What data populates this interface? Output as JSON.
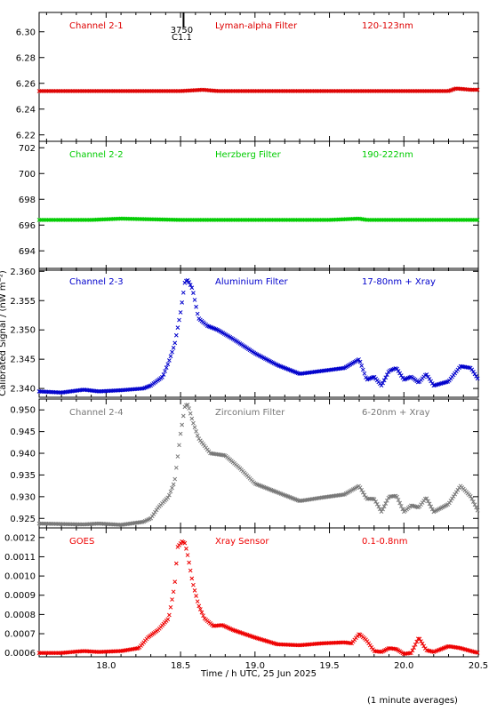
{
  "x_axis": {
    "label": "Time / h UTC, 25 Jun 2025",
    "range": [
      17.55,
      20.5
    ],
    "ticks": [
      18.0,
      18.5,
      19.0,
      19.5,
      20.0,
      20.5
    ],
    "tick_labels": [
      "18.0",
      "18.5",
      "19.0",
      "19.5",
      "20.0",
      "20.5"
    ]
  },
  "y_axis_label": "Calibrated Signal / (nW m⁻²)",
  "footnote": "(1 minute averages)",
  "marker": {
    "x": 18.52,
    "label_1": "3750",
    "label_2": "C1.1"
  },
  "chart_data": [
    {
      "type": "scatter",
      "panel": "channel-2-1",
      "channel": "Channel 2-1",
      "filter": "Lyman-alpha Filter",
      "band": "120-123nm",
      "color": "#dd0000",
      "ylim": [
        6.215,
        6.315
      ],
      "yticks": [
        6.22,
        6.24,
        6.26,
        6.28,
        6.3
      ],
      "ytick_labels": [
        "6.22",
        "6.24",
        "6.26",
        "6.28",
        "6.30"
      ],
      "series": [
        {
          "x": [
            17.55,
            18.0,
            18.5,
            18.65,
            18.75,
            19.0,
            19.5,
            20.0,
            20.3,
            20.35,
            20.45,
            20.5
          ],
          "y": [
            6.254,
            6.254,
            6.254,
            6.255,
            6.254,
            6.254,
            6.254,
            6.254,
            6.254,
            6.256,
            6.255,
            6.255
          ]
        }
      ]
    },
    {
      "type": "scatter",
      "panel": "channel-2-2",
      "channel": "Channel 2-2",
      "filter": "Herzberg Filter",
      "band": "190-222nm",
      "color": "#00cc00",
      "ylim": [
        692.5,
        702.5
      ],
      "yticks": [
        694,
        696,
        698,
        700,
        702
      ],
      "ytick_labels": [
        "694",
        "696",
        "698",
        "700",
        "702"
      ],
      "series": [
        {
          "x": [
            17.55,
            17.9,
            18.1,
            18.5,
            19.0,
            19.5,
            19.7,
            19.75,
            20.0,
            20.5
          ],
          "y": [
            696.4,
            696.4,
            696.5,
            696.4,
            696.4,
            696.4,
            696.5,
            696.4,
            696.4,
            696.4
          ]
        }
      ]
    },
    {
      "type": "scatter",
      "panel": "channel-2-3",
      "channel": "Channel 2-3",
      "filter": "Aluminium Filter",
      "band": "17-80nm + Xray",
      "color": "#0000cc",
      "ylim": [
        2.3385,
        2.3605
      ],
      "yticks": [
        2.34,
        2.345,
        2.35,
        2.355,
        2.36
      ],
      "ytick_labels": [
        "2.340",
        "2.345",
        "2.350",
        "2.355",
        "2.360"
      ],
      "series": [
        {
          "x": [
            17.55,
            17.7,
            17.85,
            17.95,
            18.1,
            18.25,
            18.3,
            18.38,
            18.42,
            18.46,
            18.5,
            18.53,
            18.55,
            18.58,
            18.62,
            18.68,
            18.75,
            18.85,
            19.0,
            19.15,
            19.3,
            19.45,
            19.6,
            19.7,
            19.75,
            19.8,
            19.85,
            19.9,
            19.95,
            20.0,
            20.05,
            20.1,
            20.15,
            20.2,
            20.3,
            20.38,
            20.45,
            20.5
          ],
          "y": [
            2.3395,
            2.3393,
            2.3398,
            2.3395,
            2.3397,
            2.34,
            2.3405,
            2.342,
            2.3445,
            2.3475,
            2.353,
            2.3583,
            2.3585,
            2.357,
            2.352,
            2.3507,
            2.35,
            2.3485,
            2.346,
            2.344,
            2.3425,
            2.343,
            2.3435,
            2.345,
            2.3415,
            2.342,
            2.3405,
            2.343,
            2.3435,
            2.3415,
            2.342,
            2.341,
            2.3425,
            2.3405,
            2.3412,
            2.3438,
            2.3435,
            2.3415
          ]
        }
      ]
    },
    {
      "type": "scatter",
      "panel": "channel-2-4",
      "channel": "Channel 2-4",
      "filter": "Zirconium Filter",
      "band": "6-20nm + Xray",
      "color": "#777777",
      "ylim": [
        0.9228,
        0.9525
      ],
      "yticks": [
        0.925,
        0.93,
        0.935,
        0.94,
        0.945,
        0.95
      ],
      "ytick_labels": [
        "0.925",
        "0.930",
        "0.935",
        "0.940",
        "0.945",
        "0.950"
      ],
      "series": [
        {
          "x": [
            17.55,
            17.7,
            17.85,
            17.95,
            18.1,
            18.25,
            18.3,
            18.35,
            18.42,
            18.46,
            18.5,
            18.53,
            18.55,
            18.58,
            18.62,
            18.7,
            18.8,
            18.9,
            19.0,
            19.15,
            19.3,
            19.45,
            19.6,
            19.7,
            19.75,
            19.8,
            19.85,
            19.9,
            19.95,
            20.0,
            20.05,
            20.1,
            20.15,
            20.2,
            20.3,
            20.38,
            20.45,
            20.5
          ],
          "y": [
            0.9238,
            0.9237,
            0.9236,
            0.9238,
            0.9235,
            0.9242,
            0.925,
            0.9275,
            0.93,
            0.9335,
            0.9445,
            0.951,
            0.9512,
            0.9475,
            0.9435,
            0.94,
            0.9395,
            0.9365,
            0.933,
            0.931,
            0.929,
            0.9298,
            0.9305,
            0.9325,
            0.9295,
            0.9295,
            0.9265,
            0.93,
            0.9302,
            0.9265,
            0.928,
            0.9275,
            0.9298,
            0.9265,
            0.9283,
            0.9325,
            0.93,
            0.9265
          ]
        }
      ]
    },
    {
      "type": "scatter",
      "panel": "goes",
      "channel": "GOES",
      "filter": "Xray Sensor",
      "band": "0.1-0.8nm",
      "color": "#ee0000",
      "ylim": [
        0.00058,
        0.00125
      ],
      "yticks": [
        0.0006,
        0.0007,
        0.0008,
        0.0009,
        0.001,
        0.0011,
        0.0012
      ],
      "ytick_labels": [
        "0.0006",
        "0.0007",
        "0.0008",
        "0.0009",
        "0.0010",
        "0.0011",
        "0.0012"
      ],
      "series": [
        {
          "x": [
            17.55,
            17.7,
            17.85,
            17.95,
            18.1,
            18.22,
            18.28,
            18.35,
            18.42,
            18.46,
            18.48,
            18.51,
            18.53,
            18.55,
            18.58,
            18.62,
            18.66,
            18.72,
            18.78,
            18.85,
            19.0,
            19.15,
            19.3,
            19.45,
            19.6,
            19.65,
            19.7,
            19.75,
            19.8,
            19.85,
            19.9,
            19.95,
            20.0,
            20.05,
            20.1,
            20.15,
            20.2,
            20.3,
            20.38,
            20.45,
            20.5
          ],
          "y": [
            0.0006,
            0.0006,
            0.00061,
            0.000605,
            0.00061,
            0.000625,
            0.00068,
            0.00072,
            0.00078,
            0.00095,
            0.00115,
            0.00118,
            0.00117,
            0.0011,
            0.00097,
            0.00085,
            0.00078,
            0.00074,
            0.000745,
            0.00072,
            0.00068,
            0.000645,
            0.00064,
            0.00065,
            0.000655,
            0.00065,
            0.0007,
            0.000665,
            0.00061,
            0.000605,
            0.000625,
            0.00062,
            0.000595,
            0.0006,
            0.00068,
            0.000615,
            0.000605,
            0.000635,
            0.000625,
            0.00061,
            0.0006
          ]
        }
      ]
    }
  ]
}
